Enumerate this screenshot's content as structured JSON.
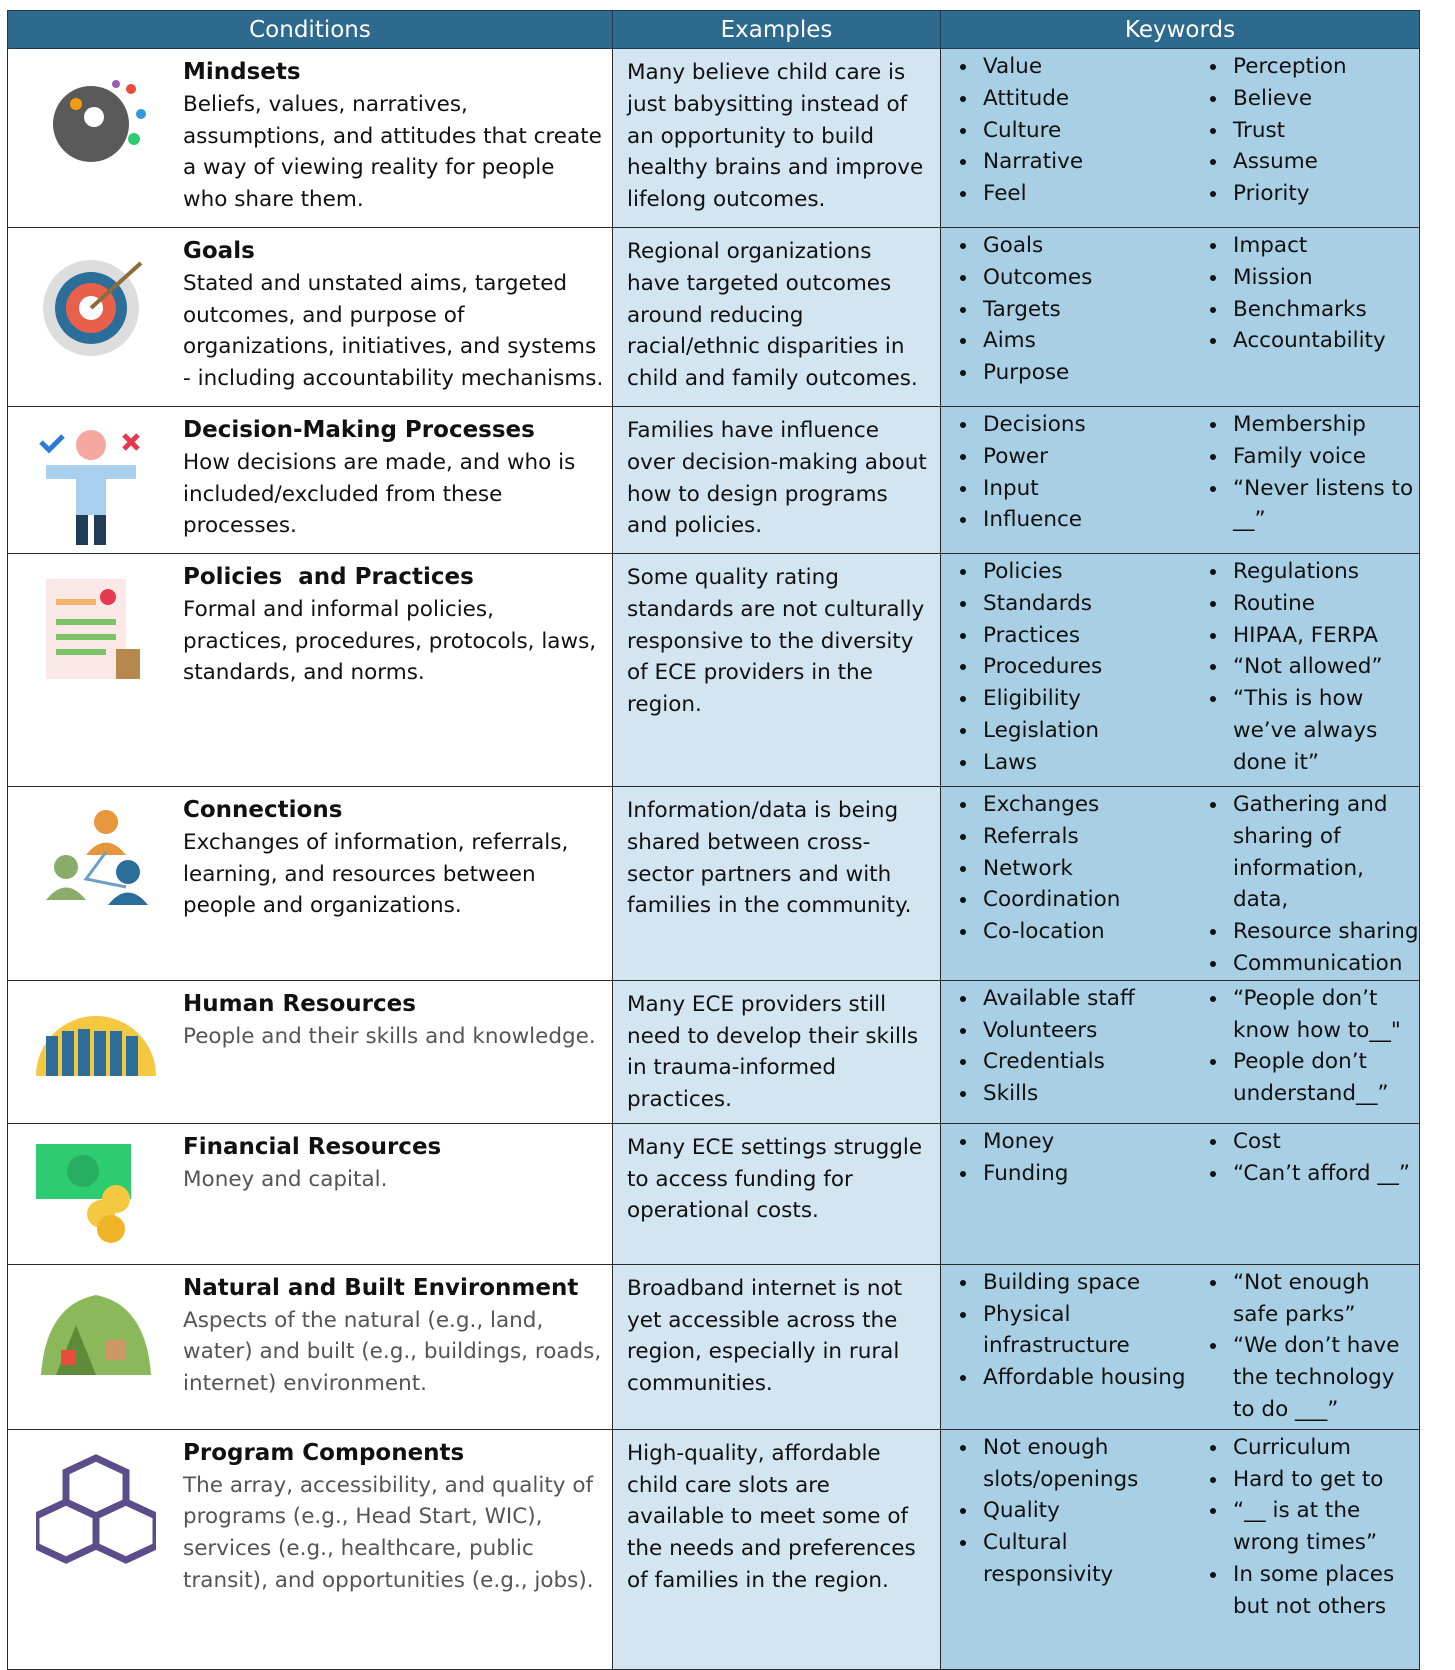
{
  "table": {
    "headers": [
      "Conditions",
      "Examples",
      "Keywords"
    ],
    "rows": [
      {
        "title": "Mindsets",
        "description": "Beliefs, values, narratives, assumptions, and attitudes that create a way of viewing reality for people who share them.",
        "example": "Many believe child care is just babysitting instead of an opportunity to build healthy brains and improve lifelong outcomes.",
        "keywords_left": [
          "Value",
          "Attitude",
          "Culture",
          "Narrative",
          "Feel"
        ],
        "keywords_right": [
          "Perception",
          "Believe",
          "Trust",
          "Assume",
          "Priority"
        ]
      },
      {
        "title": "Goals",
        "description": "Stated and unstated aims, targeted outcomes, and purpose of organizations, initiatives, and systems - including accountability mechanisms.",
        "example": "Regional organizations have targeted outcomes around reducing racial/ethnic disparities in child and family outcomes.",
        "keywords_left": [
          "Goals",
          "Outcomes",
          "Targets",
          "Aims",
          "Purpose"
        ],
        "keywords_right": [
          "Impact",
          "Mission",
          "Benchmarks",
          "Accountability"
        ]
      },
      {
        "title": "Decision-Making Processes",
        "description": "How decisions are made, and who is included/excluded from these processes.",
        "example": "Families have influence over decision-making about how to design programs and policies.",
        "keywords_left": [
          "Decisions",
          "Power",
          "Input",
          "Influence"
        ],
        "keywords_right": [
          "Membership",
          "Family voice",
          "“Never listens to __”"
        ]
      },
      {
        "title": "Policies  and Practices",
        "description": "Formal and informal policies, practices, procedures, protocols, laws, standards, and norms.",
        "example": "Some quality rating standards are not culturally responsive to the diversity of ECE providers in the region.",
        "keywords_left": [
          "Policies",
          "Standards",
          "Practices",
          "Procedures",
          "Eligibility",
          "Legislation",
          "Laws"
        ],
        "keywords_right": [
          "Regulations",
          "Routine",
          "HIPAA, FERPA",
          "“Not allowed”",
          "“This is how we’ve always done it”"
        ]
      },
      {
        "title": "Connections",
        "description": "Exchanges of information, referrals, learning, and resources between people and organizations.",
        "example": "Information/data is being shared between cross-sector partners and with families in the community.",
        "keywords_left": [
          "Exchanges",
          "Referrals",
          "Network",
          "Coordination",
          "Co-location"
        ],
        "keywords_right": [
          "Gathering and sharing of information, data,",
          "Resource sharing",
          "Communication"
        ]
      },
      {
        "title": "Human Resources",
        "description": "People and their skills and knowledge.",
        "example": "Many ECE providers still need to develop their skills in trauma-informed practices.",
        "keywords_left": [
          "Available staff",
          "Volunteers",
          "Credentials",
          "Skills"
        ],
        "keywords_right": [
          "“People don’t know how to__\"",
          "People don’t understand__”"
        ]
      },
      {
        "title": "Financial Resources",
        "description": "Money and capital.",
        "example": "Many ECE settings struggle to access funding for operational costs.",
        "keywords_left": [
          "Money",
          "Funding"
        ],
        "keywords_right": [
          "Cost",
          "“Can’t afford __”"
        ]
      },
      {
        "title": "Natural and Built Environment",
        "description": "Aspects of the natural (e.g., land, water) and built (e.g., buildings, roads, internet) environment.",
        "example": "Broadband internet is not yet accessible across the region, especially in rural communities.",
        "keywords_left": [
          "Building space",
          "Physical infrastructure",
          "Affordable housing"
        ],
        "keywords_right": [
          "“Not enough safe parks”",
          " “We don’t have the technology to do ___”"
        ]
      },
      {
        "title": "Program Components",
        "description": "The array, accessibility, and quality of programs (e.g., Head Start, WIC), services (e.g., healthcare, public transit), and opportunities (e.g., jobs).",
        "example": "High-quality, affordable child care slots are available to meet some of the needs and preferences of families in the region.",
        "keywords_left": [
          "Not enough slots/openings",
          "Quality",
          "Cultural responsivity"
        ],
        "keywords_right": [
          "Curriculum",
          "Hard to get to",
          "“__ is at the wrong times”",
          "In some places but not others"
        ]
      }
    ]
  }
}
